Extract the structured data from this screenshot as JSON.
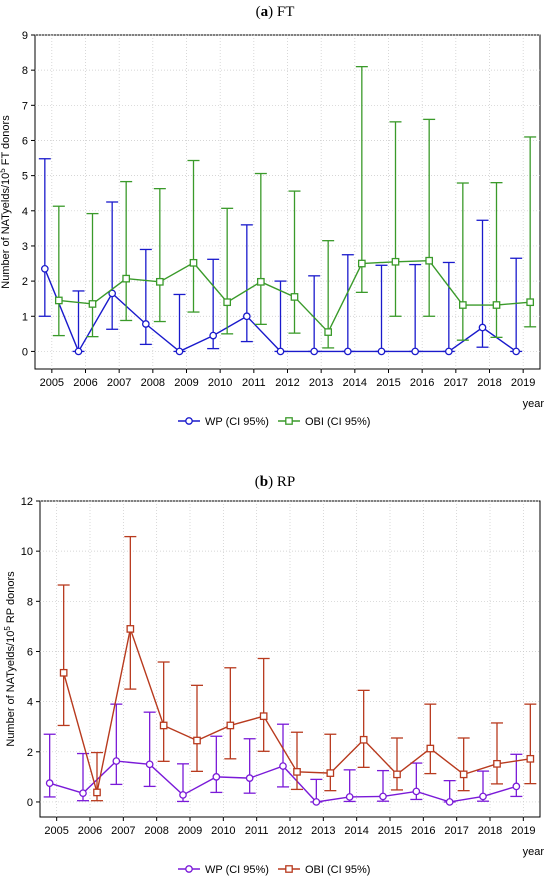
{
  "chart_data": [
    {
      "type": "line",
      "title_label": "a",
      "title_text": "FT",
      "ylabel_main": "Number of NATyelds/10",
      "ylabel_sup": "5",
      "ylabel_tail": " FT donors",
      "xlabel": "year",
      "ylim": [
        -0.5,
        9
      ],
      "yticks": [
        0,
        1,
        2,
        3,
        4,
        5,
        6,
        7,
        8,
        9
      ],
      "x": [
        2005,
        2006,
        2007,
        2008,
        2009,
        2010,
        2011,
        2012,
        2013,
        2014,
        2015,
        2016,
        2017,
        2018,
        2019
      ],
      "grid": true,
      "legend_position": "bottom-center",
      "series": [
        {
          "name": "WP (CI 95%)",
          "color": "#1a1acc",
          "marker": "circle",
          "values": [
            2.35,
            0,
            1.65,
            0.78,
            0,
            0.45,
            1.0,
            0,
            0,
            0,
            0,
            0,
            0,
            0.68,
            0
          ],
          "lower": [
            1.0,
            0,
            0.63,
            0.2,
            0,
            0.08,
            0.28,
            0,
            0,
            0,
            0,
            0,
            0,
            0.12,
            0
          ],
          "upper": [
            5.48,
            1.72,
            4.25,
            2.9,
            1.62,
            2.62,
            3.6,
            2.0,
            2.15,
            2.75,
            2.45,
            2.47,
            2.53,
            3.73,
            2.65
          ]
        },
        {
          "name": "OBI (CI 95%)",
          "color": "#3a9a2a",
          "marker": "square",
          "values": [
            1.45,
            1.35,
            2.07,
            1.98,
            2.52,
            1.4,
            1.98,
            1.55,
            0.55,
            2.5,
            2.55,
            2.58,
            1.32,
            1.32,
            1.4
          ],
          "lower": [
            0.45,
            0.42,
            0.88,
            0.85,
            1.12,
            0.5,
            0.77,
            0.52,
            0.1,
            1.68,
            1.0,
            1.0,
            0.32,
            0.4,
            0.7
          ],
          "upper": [
            4.13,
            3.92,
            4.83,
            4.63,
            5.43,
            4.07,
            5.06,
            4.56,
            3.15,
            8.1,
            6.53,
            6.6,
            4.79,
            4.8,
            6.1
          ]
        }
      ]
    },
    {
      "type": "line",
      "title_label": "b",
      "title_text": "RP",
      "ylabel_main": "Number of NATyelds/10",
      "ylabel_sup": "5",
      "ylabel_tail": " RP donors",
      "xlabel": "year",
      "ylim": [
        -0.6,
        12
      ],
      "yticks": [
        0,
        2,
        4,
        6,
        8,
        10,
        12
      ],
      "x": [
        2005,
        2006,
        2007,
        2008,
        2009,
        2010,
        2011,
        2012,
        2013,
        2014,
        2015,
        2016,
        2017,
        2018,
        2019
      ],
      "grid": true,
      "legend_position": "bottom-center",
      "series": [
        {
          "name": "WP (CI 95%)",
          "color": "#7a1ad8",
          "marker": "circle",
          "values": [
            0.75,
            0.35,
            1.63,
            1.5,
            0.28,
            1.0,
            0.95,
            1.43,
            0,
            0.2,
            0.22,
            0.42,
            0,
            0.22,
            0.62
          ],
          "lower": [
            0.2,
            0.05,
            0.7,
            0.62,
            0.02,
            0.38,
            0.35,
            0.6,
            0,
            0.02,
            0.03,
            0.1,
            0,
            0.03,
            0.22
          ],
          "upper": [
            2.7,
            1.93,
            3.9,
            3.58,
            1.52,
            2.62,
            2.52,
            3.1,
            0.9,
            1.28,
            1.25,
            1.55,
            0.85,
            1.23,
            1.9
          ]
        },
        {
          "name": "OBI (CI 95%)",
          "color": "#b83a1e",
          "marker": "square",
          "values": [
            5.15,
            0.38,
            6.9,
            3.05,
            2.45,
            3.05,
            3.42,
            1.2,
            1.15,
            2.48,
            1.1,
            2.13,
            1.1,
            1.52,
            1.72
          ],
          "lower": [
            3.05,
            0.05,
            4.5,
            1.62,
            1.22,
            1.72,
            2.02,
            0.5,
            0.45,
            1.38,
            0.48,
            1.13,
            0.45,
            0.72,
            0.73
          ],
          "upper": [
            8.65,
            1.97,
            10.58,
            5.58,
            4.65,
            5.35,
            5.72,
            2.78,
            2.7,
            4.45,
            2.55,
            3.9,
            2.55,
            3.15,
            3.9
          ]
        }
      ]
    }
  ]
}
